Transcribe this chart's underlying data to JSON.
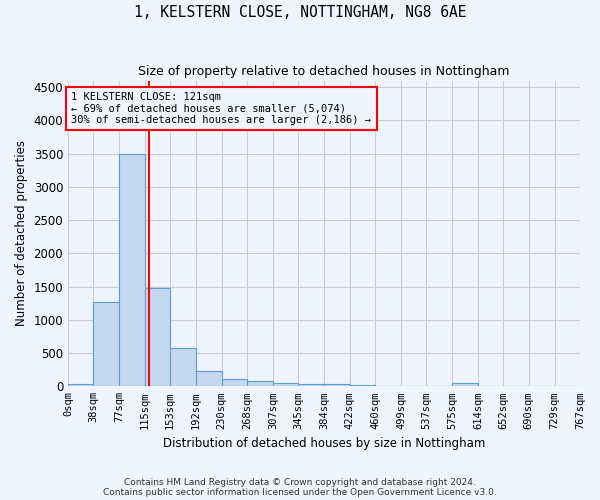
{
  "title1": "1, KELSTERN CLOSE, NOTTINGHAM, NG8 6AE",
  "title2": "Size of property relative to detached houses in Nottingham",
  "xlabel": "Distribution of detached houses by size in Nottingham",
  "ylabel": "Number of detached properties",
  "footer1": "Contains HM Land Registry data © Crown copyright and database right 2024.",
  "footer2": "Contains public sector information licensed under the Open Government Licence v3.0.",
  "bin_labels": [
    "0sqm",
    "38sqm",
    "77sqm",
    "115sqm",
    "153sqm",
    "192sqm",
    "230sqm",
    "268sqm",
    "307sqm",
    "345sqm",
    "384sqm",
    "422sqm",
    "460sqm",
    "499sqm",
    "537sqm",
    "575sqm",
    "614sqm",
    "652sqm",
    "690sqm",
    "729sqm",
    "767sqm"
  ],
  "bin_edges": [
    0,
    38,
    77,
    115,
    153,
    192,
    230,
    268,
    307,
    345,
    384,
    422,
    460,
    499,
    537,
    575,
    614,
    652,
    690,
    729,
    767
  ],
  "bar_values": [
    30,
    1270,
    3500,
    1480,
    580,
    235,
    115,
    85,
    55,
    40,
    30,
    20,
    10,
    0,
    0,
    50,
    0,
    0,
    0,
    0
  ],
  "bar_color": "#c5d8f0",
  "bar_edge_color": "#5a9fd4",
  "ylim": [
    0,
    4600
  ],
  "yticks": [
    0,
    500,
    1000,
    1500,
    2000,
    2500,
    3000,
    3500,
    4000,
    4500
  ],
  "vline_x": 121,
  "vline_color": "red",
  "annotation_line1": "1 KELSTERN CLOSE: 121sqm",
  "annotation_line2": "← 69% of detached houses are smaller (5,074)",
  "annotation_line3": "30% of semi-detached houses are larger (2,186) →",
  "annotation_box_color": "red",
  "bg_color": "#f0f4ff",
  "grid_color": "#cccccc"
}
